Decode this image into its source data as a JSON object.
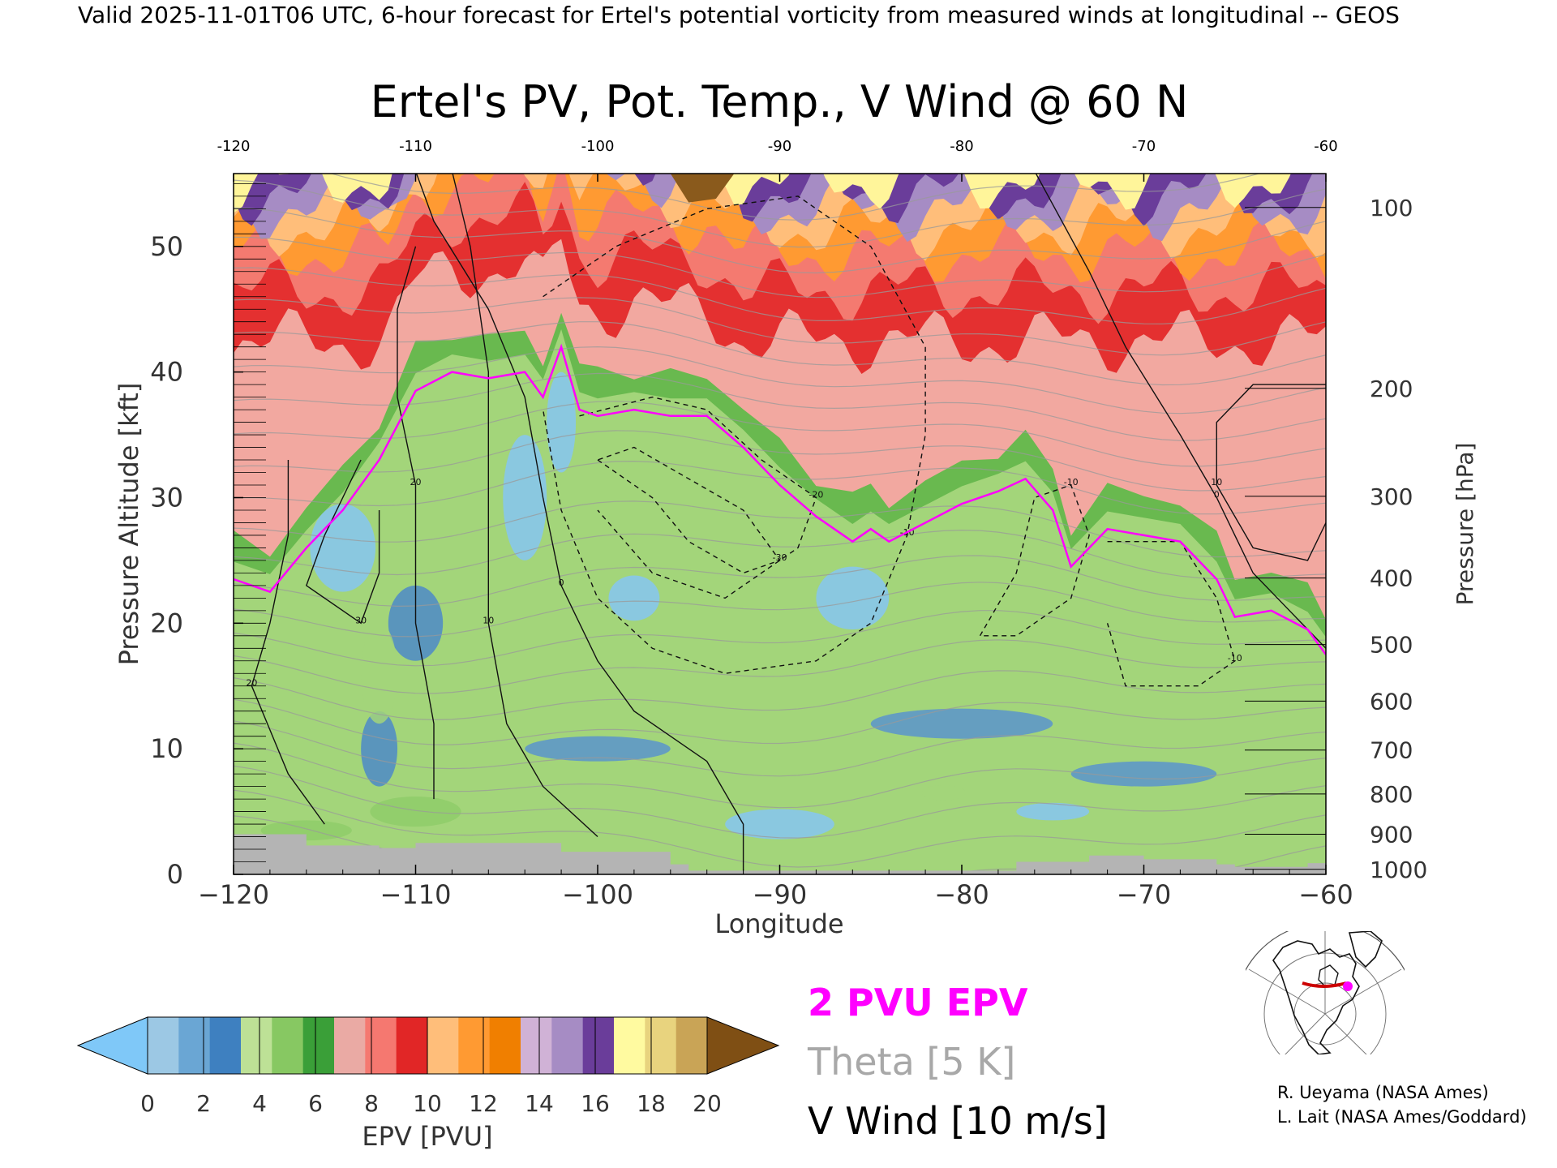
{
  "header": {
    "valid_line": "Valid 2025-11-01T06 UTC, 6-hour forecast for Ertel's potential vorticity from measured winds at longitudinal -- GEOS"
  },
  "chart_data": {
    "type": "heatmap",
    "title": "Ertel's PV, Pot. Temp., V Wind @ 60 N",
    "xlabel": "Longitude",
    "ylabel_left": "Pressure Altitude [kft]",
    "ylabel_right": "Pressure [hPa]",
    "xlim": [
      -120,
      -60
    ],
    "ylim": [
      0,
      55.8
    ],
    "x_ticks": [
      -120,
      -110,
      -100,
      -90,
      -80,
      -70,
      -60
    ],
    "x_tick_labels": [
      "−120",
      "−110",
      "−100",
      "−90",
      "−80",
      "−70",
      "−60"
    ],
    "top_tick_labels": [
      "-120",
      "-110",
      "-100",
      "-90",
      "-80",
      "-70",
      "-60"
    ],
    "y_ticks": [
      0,
      10,
      20,
      30,
      40,
      50
    ],
    "y_tick_labels": [
      "0",
      "10",
      "20",
      "30",
      "40",
      "50"
    ],
    "pressure_ticks": [
      {
        "label": "100",
        "kft": 53.1
      },
      {
        "label": "200",
        "kft": 38.7
      },
      {
        "label": "300",
        "kft": 30.1
      },
      {
        "label": "400",
        "kft": 23.6
      },
      {
        "label": "500",
        "kft": 18.3
      },
      {
        "label": "600",
        "kft": 13.8
      },
      {
        "label": "700",
        "kft": 9.9
      },
      {
        "label": "800",
        "kft": 6.4
      },
      {
        "label": "900",
        "kft": 3.2
      },
      {
        "label": "1000",
        "kft": 0.4
      }
    ],
    "tropopause_2pvu": [
      [
        -120,
        23.5
      ],
      [
        -118,
        22.5
      ],
      [
        -116,
        26
      ],
      [
        -114,
        29
      ],
      [
        -112,
        33
      ],
      [
        -110,
        38.5
      ],
      [
        -108,
        40
      ],
      [
        -106,
        39.5
      ],
      [
        -104,
        40
      ],
      [
        -103,
        38
      ],
      [
        -102,
        42
      ],
      [
        -101,
        37
      ],
      [
        -100,
        36.5
      ],
      [
        -98,
        37
      ],
      [
        -96,
        36.5
      ],
      [
        -94,
        36.5
      ],
      [
        -92,
        34
      ],
      [
        -90,
        31
      ],
      [
        -88,
        28.5
      ],
      [
        -86,
        26.5
      ],
      [
        -85,
        27.5
      ],
      [
        -84,
        26.5
      ],
      [
        -82,
        28
      ],
      [
        -80,
        29.5
      ],
      [
        -78,
        30.5
      ],
      [
        -76.5,
        31.5
      ],
      [
        -75,
        29
      ],
      [
        -74,
        24.5
      ],
      [
        -72,
        27.5
      ],
      [
        -70,
        27
      ],
      [
        -68,
        26.5
      ],
      [
        -66,
        23.5
      ],
      [
        -65,
        20.5
      ],
      [
        -63,
        21
      ],
      [
        -61,
        19.5
      ],
      [
        -60,
        17.5
      ]
    ],
    "theta_isentropes_K": [
      280,
      285,
      290,
      295,
      300,
      305,
      310,
      315,
      320,
      325,
      330,
      335,
      340,
      345,
      350,
      355,
      360,
      365,
      370,
      375,
      380,
      385,
      390,
      395,
      400
    ],
    "v_wind_contours": [
      {
        "level": "-30",
        "points": [
          [
            -100,
            33
          ],
          [
            -97,
            30
          ],
          [
            -95,
            26.5
          ],
          [
            -92,
            24
          ],
          [
            -90,
            25
          ],
          [
            -92,
            29
          ],
          [
            -95,
            31.5
          ],
          [
            -98,
            34
          ]
        ]
      },
      {
        "level": "-20",
        "points": [
          [
            -101,
            36.5
          ],
          [
            -97,
            38
          ],
          [
            -94,
            37
          ],
          [
            -91,
            33
          ],
          [
            -88,
            30
          ],
          [
            -89,
            26
          ],
          [
            -93,
            22
          ],
          [
            -97,
            24
          ],
          [
            -100,
            29
          ]
        ]
      },
      {
        "level": "-10",
        "points": [
          [
            -103,
            46
          ],
          [
            -99,
            50
          ],
          [
            -94,
            53
          ],
          [
            -89,
            54
          ],
          [
            -85,
            50
          ],
          [
            -82,
            42
          ],
          [
            -82,
            35
          ],
          [
            -83,
            27
          ],
          [
            -85,
            20
          ],
          [
            -88,
            17
          ],
          [
            -93,
            16
          ],
          [
            -97,
            18
          ],
          [
            -100,
            22
          ],
          [
            -102,
            29
          ],
          [
            -103,
            37
          ]
        ]
      },
      {
        "level": "-10",
        "points": [
          [
            -79,
            19
          ],
          [
            -77,
            24
          ],
          [
            -76,
            30
          ],
          [
            -74,
            31
          ],
          [
            -73,
            27
          ],
          [
            -74,
            22
          ],
          [
            -77,
            19
          ]
        ]
      },
      {
        "level": "-10",
        "points": [
          [
            -72,
            26.5
          ],
          [
            -68,
            26.5
          ],
          [
            -66,
            22
          ],
          [
            -65,
            17
          ],
          [
            -67,
            15
          ],
          [
            -71,
            15
          ],
          [
            -72,
            20
          ]
        ]
      },
      {
        "level": "0",
        "points": [
          [
            -110,
            56
          ],
          [
            -109,
            52
          ],
          [
            -106,
            45
          ],
          [
            -104,
            38
          ],
          [
            -103,
            30
          ],
          [
            -102,
            23
          ],
          [
            -100,
            17
          ],
          [
            -98,
            13
          ],
          [
            -94,
            9
          ],
          [
            -92,
            4
          ],
          [
            -92,
            0
          ]
        ]
      },
      {
        "level": "0",
        "points": [
          [
            -76,
            56
          ],
          [
            -73,
            48
          ],
          [
            -71,
            42
          ],
          [
            -68,
            35
          ],
          [
            -66,
            30
          ],
          [
            -64,
            24
          ],
          [
            -62,
            21
          ],
          [
            -60,
            18
          ]
        ]
      },
      {
        "level": "10",
        "points": [
          [
            -108,
            56
          ],
          [
            -107,
            50
          ],
          [
            -106,
            40
          ],
          [
            -106,
            30
          ],
          [
            -106,
            20
          ],
          [
            -105,
            12
          ],
          [
            -103,
            7
          ],
          [
            -100,
            3
          ]
        ]
      },
      {
        "level": "10",
        "points": [
          [
            -60,
            39
          ],
          [
            -64,
            39
          ],
          [
            -66,
            36
          ],
          [
            -66,
            31
          ],
          [
            -64,
            26
          ],
          [
            -61,
            25
          ],
          [
            -60,
            28
          ]
        ]
      },
      {
        "level": "20",
        "points": [
          [
            -110,
            50
          ],
          [
            -111,
            45
          ],
          [
            -111,
            38
          ],
          [
            -110,
            31
          ],
          [
            -110,
            20
          ],
          [
            -109,
            12
          ],
          [
            -109,
            6
          ]
        ]
      },
      {
        "level": "30",
        "points": [
          [
            -113,
            33
          ],
          [
            -115,
            27
          ],
          [
            -116,
            23
          ],
          [
            -113,
            20
          ],
          [
            -112,
            24
          ],
          [
            -112,
            29
          ]
        ]
      },
      {
        "level": "20",
        "points": [
          [
            -117,
            33
          ],
          [
            -117,
            27
          ],
          [
            -118,
            20
          ],
          [
            -119,
            15
          ],
          [
            -117,
            8
          ],
          [
            -115,
            4
          ]
        ]
      }
    ],
    "surface_terrain": [
      [
        -120,
        3.2
      ],
      [
        -118,
        3.2
      ],
      [
        -116,
        2.3
      ],
      [
        -113,
        2.3
      ],
      [
        -112,
        2.1
      ],
      [
        -110,
        2.5
      ],
      [
        -103,
        2.5
      ],
      [
        -102,
        1.8
      ],
      [
        -98,
        1.8
      ],
      [
        -96,
        0.8
      ],
      [
        -95,
        0.3
      ],
      [
        -78,
        0.3
      ],
      [
        -77,
        1
      ],
      [
        -74,
        1
      ],
      [
        -73,
        1.5
      ],
      [
        -70,
        1.2
      ],
      [
        -66,
        0.8
      ],
      [
        -65,
        0.6
      ],
      [
        -62,
        0.6
      ],
      [
        -61,
        0.9
      ],
      [
        -60,
        0.9
      ]
    ],
    "colorbar": {
      "label": "EPV [PVU]",
      "ticks": [
        "0",
        "2",
        "4",
        "6",
        "8",
        "10",
        "12",
        "14",
        "16",
        "18",
        "20"
      ],
      "under_color": "#7fc8f8",
      "over_color": "#7f4f14",
      "colors": [
        "#9cc8e4",
        "#6aa6d4",
        "#3e80c0",
        "#bde196",
        "#87c862",
        "#3a9f38",
        "#eaaaa4",
        "#f57870",
        "#e12626",
        "#ffbe7a",
        "#ff9a32",
        "#f07f00",
        "#d0b2d6",
        "#a68cc4",
        "#6a3d9a",
        "#fffaa0",
        "#e8d37e",
        "#c9a456"
      ]
    },
    "legend": [
      {
        "label": "2 PVU EPV",
        "color": "#ff00ff"
      },
      {
        "label": "Theta [5 K]",
        "color": "#a8a8a8"
      },
      {
        "label": "V Wind [10 m/s]",
        "color": "#000000"
      }
    ]
  },
  "map_inset": {
    "line_color": "#cc0000",
    "marker_color": "#ff00ff"
  },
  "credits": [
    "R. Ueyama (NASA Ames)",
    "L. Lait (NASA Ames/Goddard)"
  ]
}
